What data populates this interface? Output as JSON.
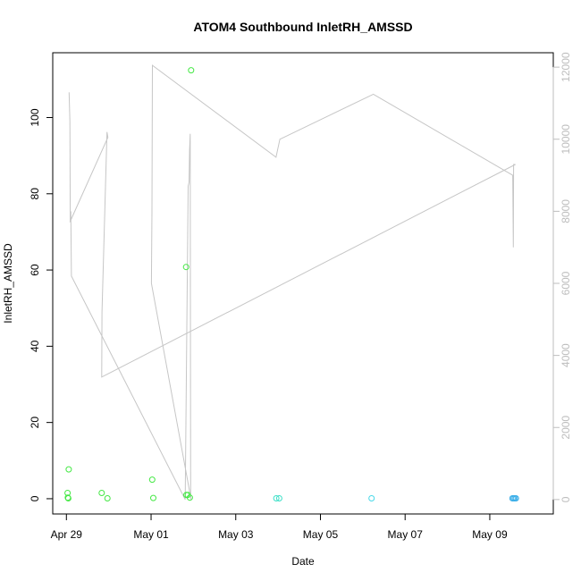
{
  "chart_data": {
    "type": "scatter",
    "title": "ATOM4 Southbound InletRH_AMSSD",
    "xlabel": "Date",
    "ylabel": "InletRH_AMSSD",
    "xlim": [
      "2016-04-28 16:15",
      "2016-05-10 12:00"
    ],
    "ylim": [
      -4,
      117
    ],
    "x_ticks": [
      {
        "label": "Apr 29",
        "date": "2016-04-29 00:00"
      },
      {
        "label": "May 01",
        "date": "2016-05-01 00:00"
      },
      {
        "label": "May 03",
        "date": "2016-05-03 00:00"
      },
      {
        "label": "May 05",
        "date": "2016-05-05 00:00"
      },
      {
        "label": "May 07",
        "date": "2016-05-07 00:00"
      },
      {
        "label": "May 09",
        "date": "2016-05-09 00:00"
      }
    ],
    "y_ticks": [
      0,
      20,
      40,
      60,
      80,
      100
    ],
    "y2lim": [
      -400,
      12400
    ],
    "y2_ticks": [
      0,
      2000,
      4000,
      6000,
      8000,
      10000,
      12000
    ],
    "grid": false,
    "legend": "none",
    "series": [
      {
        "kind": "points",
        "axis": "left",
        "points": [
          {
            "date": "2016-04-29 00:40",
            "value": 1.5,
            "color": "#44e844"
          },
          {
            "date": "2016-04-29 00:50",
            "value": 0.3,
            "color": "#44e844"
          },
          {
            "date": "2016-04-29 01:05",
            "value": 0.1,
            "color": "#44e844"
          },
          {
            "date": "2016-04-29 01:20",
            "value": 7.7,
            "color": "#44e844"
          },
          {
            "date": "2016-04-29 20:00",
            "value": 1.5,
            "color": "#44e844"
          },
          {
            "date": "2016-04-29 23:15",
            "value": 0.1,
            "color": "#44e844"
          },
          {
            "date": "2016-05-01 00:40",
            "value": 5.0,
            "color": "#44e844"
          },
          {
            "date": "2016-05-01 01:15",
            "value": 0.2,
            "color": "#44e844"
          },
          {
            "date": "2016-05-01 19:50",
            "value": 60.8,
            "color": "#44e844"
          },
          {
            "date": "2016-05-01 20:00",
            "value": 1.0,
            "color": "#44e844"
          },
          {
            "date": "2016-05-01 20:50",
            "value": 1.0,
            "color": "#44e844"
          },
          {
            "date": "2016-05-01 22:00",
            "value": 0.3,
            "color": "#44e844"
          },
          {
            "date": "2016-05-01 22:40",
            "value": 112.4,
            "color": "#44e844"
          },
          {
            "date": "2016-05-03 23:00",
            "value": 0.1,
            "color": "#3ee0c8"
          },
          {
            "date": "2016-05-04 00:40",
            "value": 0.1,
            "color": "#3ee0c8"
          },
          {
            "date": "2016-05-06 05:00",
            "value": 0.1,
            "color": "#48d8e8"
          },
          {
            "date": "2016-05-09 12:50",
            "value": 0.1,
            "color": "#3aaee8"
          },
          {
            "date": "2016-05-09 13:30",
            "value": 0.1,
            "color": "#3aaee8"
          },
          {
            "date": "2016-05-09 14:10",
            "value": 0.1,
            "color": "#3aaee8"
          },
          {
            "date": "2016-05-09 14:50",
            "value": 0.1,
            "color": "#3aaee8"
          }
        ]
      },
      {
        "kind": "line",
        "axis": "right",
        "color": "#c6c6c6",
        "points": [
          {
            "date": "2016-04-29 01:30",
            "value": 11300
          },
          {
            "date": "2016-04-29 02:00",
            "value": 10500
          },
          {
            "date": "2016-04-29 02:10",
            "value": 7700
          },
          {
            "date": "2016-04-29 02:30",
            "value": 8000
          },
          {
            "date": "2016-04-29 02:50",
            "value": 6200
          },
          {
            "date": "2016-05-01 19:20",
            "value": 0
          },
          {
            "date": "2016-05-01 21:00",
            "value": 8700
          },
          {
            "date": "2016-05-01 21:30",
            "value": 8800
          },
          {
            "date": "2016-05-01 21:50",
            "value": 9700
          },
          {
            "date": "2016-05-01 22:10",
            "value": 10150
          },
          {
            "date": "2016-05-01 22:25",
            "value": 100
          },
          {
            "date": "2016-05-01 22:40",
            "value": 0
          },
          {
            "date": "2016-05-01 00:10",
            "value": 6000
          },
          {
            "date": "2016-05-01 00:30",
            "value": 8000
          },
          {
            "date": "2016-05-01 00:45",
            "value": 12050
          },
          {
            "date": "2016-05-03 22:50",
            "value": 9500
          },
          {
            "date": "2016-05-04 01:00",
            "value": 10000
          },
          {
            "date": "2016-05-06 06:00",
            "value": 11250
          },
          {
            "date": "2016-05-09 13:00",
            "value": 9000
          },
          {
            "date": "2016-05-09 13:20",
            "value": 7000
          },
          {
            "date": "2016-05-09 13:30",
            "value": 9300
          },
          {
            "date": "2016-05-09 14:30",
            "value": 9300
          },
          {
            "date": "2016-04-29 20:00",
            "value": 3400
          },
          {
            "date": "2016-04-29 20:10",
            "value": 5200
          },
          {
            "date": "2016-04-29 23:00",
            "value": 10200
          },
          {
            "date": "2016-04-29 23:30",
            "value": 10050
          },
          {
            "date": "2016-04-29 02:00",
            "value": 7700
          }
        ]
      }
    ]
  }
}
